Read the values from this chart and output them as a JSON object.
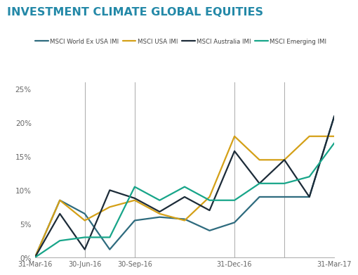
{
  "title": "INVESTMENT CLIMATE GLOBAL EQUITIES",
  "title_fontsize": 11.5,
  "title_color": "#2489a8",
  "background_color": "#ffffff",
  "series": {
    "MSCI World Ex USA IMI": {
      "color": "#2e6b7e",
      "linewidth": 1.6,
      "values": [
        0,
        8.5,
        6.5,
        1.2,
        5.5,
        6.0,
        5.7,
        4.0,
        5.2,
        9.0,
        9.0,
        9.0,
        21.0
      ]
    },
    "MSCI USA IMI": {
      "color": "#d4a017",
      "linewidth": 1.6,
      "values": [
        0,
        8.5,
        5.5,
        7.5,
        8.5,
        6.5,
        5.5,
        9.0,
        18.0,
        14.5,
        14.5,
        18.0,
        18.0
      ]
    },
    "MSCI Australia IMI": {
      "color": "#1c2b38",
      "linewidth": 1.6,
      "values": [
        0,
        6.5,
        1.2,
        10.0,
        8.8,
        6.8,
        9.0,
        7.0,
        15.8,
        11.0,
        14.5,
        9.0,
        21.0
      ]
    },
    "MSCI Emerging IMI": {
      "color": "#17a589",
      "linewidth": 1.6,
      "values": [
        0,
        2.5,
        3.0,
        3.0,
        10.5,
        8.5,
        10.5,
        8.5,
        8.5,
        11.0,
        11.0,
        12.0,
        17.0
      ]
    }
  },
  "x_positions": [
    0,
    1,
    2,
    3,
    4,
    5,
    6,
    7,
    8,
    9,
    10,
    11,
    12
  ],
  "vline_positions": [
    2,
    4,
    8,
    10
  ],
  "xtick_positions": [
    0,
    2,
    4,
    8,
    12
  ],
  "xtick_labels": [
    "31-Mar-16",
    "30-Jun-16",
    "30-Sep-16",
    "31-Dec-16",
    "31-Mar-17"
  ],
  "ylim": [
    0,
    26
  ],
  "yticks": [
    0,
    5,
    10,
    15,
    20,
    25
  ],
  "legend_order": [
    "MSCI World Ex USA IMI",
    "MSCI USA IMI",
    "MSCI Australia IMI",
    "MSCI Emerging IMI"
  ]
}
